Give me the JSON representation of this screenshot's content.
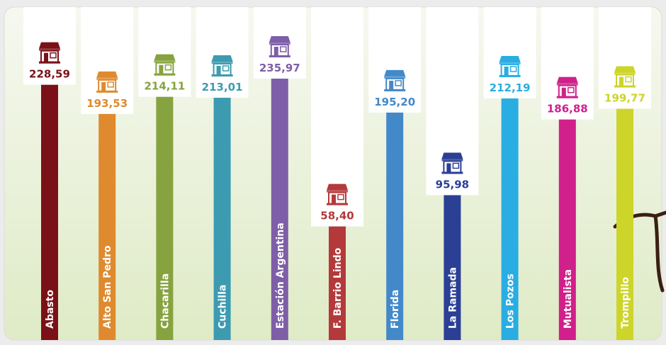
{
  "chart_data": {
    "type": "bar",
    "categories": [
      "Abasto",
      "Alto San Pedro",
      "Chacarilla",
      "Cuchilla",
      "Estación Argentina",
      "F. Barrio Lindo",
      "Florida",
      "La Ramada",
      "Los Pozos",
      "Mutualista",
      "Trompillo"
    ],
    "values": [
      228.59,
      193.53,
      214.11,
      213.01,
      235.97,
      58.4,
      195.2,
      95.98,
      212.19,
      186.88,
      199.77
    ],
    "value_labels": [
      "228,59",
      "193,53",
      "214,11",
      "213,01",
      "235,97",
      "58,40",
      "195,20",
      "95,98",
      "212,19",
      "186,88",
      "199,77"
    ],
    "colors": [
      "#7b1118",
      "#df8a2e",
      "#86a33f",
      "#3c9bb1",
      "#7e5ea8",
      "#b4393b",
      "#4389c9",
      "#2b3f95",
      "#29ade2",
      "#d0208b",
      "#cdd42a"
    ]
  }
}
